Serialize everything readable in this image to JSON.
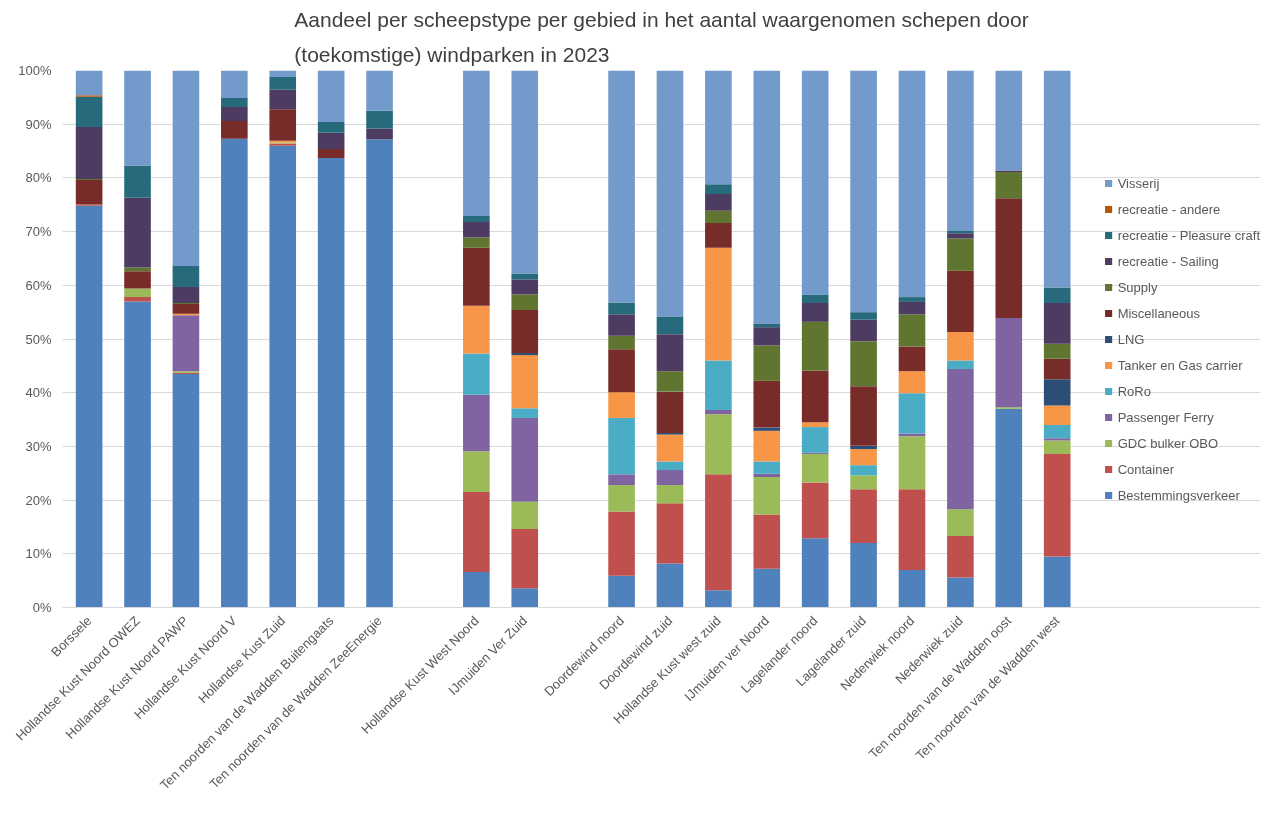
{
  "chart_data": {
    "type": "bar",
    "stacked": true,
    "title": "Aandeel per scheepstype per gebied in het aantal waargenomen schepen door\n(toekomstige) windparken in 2023",
    "categories": [
      "Borssele",
      "Hollandse Kust Noord OWEZ",
      "Hollandse Kust Noord PAWP",
      "Hollandse Kust Noord V",
      "Hollandse Kust Zuid",
      "Ten noorden van de Wadden Buitengaats",
      "Ten noorden van de Wadden ZeeEnergie",
      null,
      "Hollandse Kust West Noord",
      "IJmuiden Ver Zuid",
      null,
      "Doordewind noord",
      "Doordewind zuid",
      "Hollandse Kust west zuid",
      "IJmuiden ver Noord",
      "Lagelander noord",
      "Lagelander zuid",
      "Nederwiek noord",
      "Nederwiek zuid",
      "Ten noorden van de Wadden oost",
      "Ten noorden van de Wadden west"
    ],
    "ylim": [
      0,
      100
    ],
    "yticks": [
      {
        "value": 0,
        "label": "0%"
      },
      {
        "value": 10,
        "label": "10%"
      },
      {
        "value": 20,
        "label": "20%"
      },
      {
        "value": 30,
        "label": "30%"
      },
      {
        "value": 40,
        "label": "40%"
      },
      {
        "value": 50,
        "label": "50%"
      },
      {
        "value": 60,
        "label": "60%"
      },
      {
        "value": 70,
        "label": "70%"
      },
      {
        "value": 80,
        "label": "80%"
      },
      {
        "value": 90,
        "label": "90%"
      },
      {
        "value": 100,
        "label": "100%"
      }
    ],
    "grid": "y",
    "legend": "right",
    "series": [
      {
        "name": "Bestemmingsverkeer",
        "color": "#4f81bd",
        "values": [
          74.8,
          57.0,
          43.5,
          87.3,
          86.0,
          83.7,
          87.2,
          null,
          6.6,
          3.6,
          null,
          5.9,
          8.2,
          3.2,
          7.2,
          12.9,
          12.0,
          7.0,
          5.6,
          37.0,
          9.5
        ]
      },
      {
        "name": "Container",
        "color": "#c0504d",
        "values": [
          0.3,
          0.8,
          0.2,
          0,
          0.4,
          0,
          0,
          null,
          14.9,
          11.0,
          null,
          12.0,
          11.2,
          21.6,
          10.1,
          10.4,
          10.0,
          15.0,
          7.7,
          0,
          19.1
        ]
      },
      {
        "name": "GDC bulker OBO",
        "color": "#9bbb59",
        "values": [
          0,
          1.6,
          0.3,
          0,
          0.2,
          0,
          0,
          null,
          7.6,
          5.1,
          null,
          4.9,
          3.4,
          11.2,
          7.0,
          5.3,
          2.6,
          9.9,
          5.0,
          0.3,
          2.5
        ]
      },
      {
        "name": "Passenger Ferry",
        "color": "#8064a2",
        "values": [
          0,
          0,
          10.4,
          0,
          0,
          0,
          0,
          null,
          10.5,
          15.6,
          null,
          2.0,
          2.8,
          0.8,
          0.6,
          0.2,
          0,
          0.5,
          26.1,
          16.6,
          0.4
        ]
      },
      {
        "name": "RoRo",
        "color": "#4bacc6",
        "values": [
          0,
          0,
          0,
          0,
          0,
          0,
          0,
          null,
          7.7,
          1.8,
          null,
          10.5,
          1.6,
          9.2,
          2.3,
          4.8,
          1.9,
          7.5,
          1.6,
          0,
          2.5
        ]
      },
      {
        "name": "Tanker en Gas carrier",
        "color": "#f79646",
        "values": [
          0,
          0,
          0.3,
          0,
          0.3,
          0,
          0,
          null,
          8.9,
          9.9,
          null,
          4.8,
          5.0,
          21.0,
          5.7,
          0.9,
          3.0,
          4.1,
          5.3,
          0,
          3.6
        ]
      },
      {
        "name": "LNG",
        "color": "#2c4d75",
        "values": [
          0,
          0,
          0,
          0,
          0,
          0,
          0,
          null,
          0,
          0.4,
          null,
          0,
          0.3,
          0,
          0.6,
          0,
          0.6,
          0,
          0,
          0,
          4.9
        ]
      },
      {
        "name": "Miscellaneous",
        "color": "#772c2a",
        "values": [
          4.5,
          3.2,
          1.8,
          3.3,
          5.9,
          1.7,
          0,
          null,
          10.8,
          8.0,
          null,
          8.0,
          7.7,
          4.6,
          8.7,
          9.6,
          11.1,
          4.6,
          11.4,
          22.3,
          3.8
        ]
      },
      {
        "name": "Supply",
        "color": "#5f7530",
        "values": [
          0.2,
          0.7,
          0.2,
          0,
          0,
          0,
          0,
          null,
          1.9,
          2.9,
          null,
          2.5,
          3.8,
          2.3,
          6.6,
          9.1,
          8.4,
          6.0,
          6.0,
          4.9,
          2.8
        ]
      },
      {
        "name": "recreatie - Sailing",
        "color": "#4d3b62",
        "values": [
          9.7,
          13.0,
          3.0,
          2.6,
          3.6,
          3.0,
          2.0,
          null,
          2.9,
          2.8,
          null,
          4.0,
          6.9,
          3.1,
          3.4,
          3.5,
          4.0,
          2.3,
          1.0,
          0.3,
          7.6
        ]
      },
      {
        "name": "recreatie - Pleasure craft",
        "color": "#276a7c",
        "values": [
          5.6,
          6.0,
          3.9,
          1.7,
          2.4,
          2.0,
          3.3,
          null,
          1.1,
          1.1,
          null,
          2.2,
          3.3,
          1.8,
          0.7,
          1.6,
          1.4,
          0.9,
          0.4,
          0,
          2.9
        ]
      },
      {
        "name": "recreatie - andere",
        "color": "#b65708",
        "values": [
          0.3,
          0,
          0,
          0,
          0,
          0,
          0,
          null,
          0,
          0,
          null,
          0,
          0,
          0,
          0,
          0,
          0,
          0,
          0,
          0,
          0
        ]
      },
      {
        "name": "Visserij",
        "color": "#729aca",
        "values": [
          4.6,
          17.7,
          36.4,
          5.1,
          1.2,
          9.6,
          7.5,
          null,
          27.1,
          37.8,
          null,
          43.2,
          45.8,
          21.2,
          47.1,
          41.7,
          45.0,
          42.2,
          29.9,
          18.6,
          40.4
        ]
      }
    ]
  }
}
